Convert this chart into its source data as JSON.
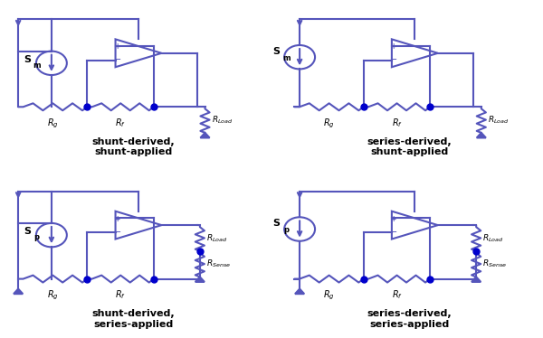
{
  "line_color": "#5555bb",
  "dot_color": "#0000cc",
  "bg_color": "#ffffff",
  "line_width": 1.5,
  "panels": [
    {
      "title": "shunt-derived,\nshunt-applied",
      "source": "Sm",
      "source_type": "shunt",
      "feedback": "shunt"
    },
    {
      "title": "series-derived,\nshunt-applied",
      "source": "Sm",
      "source_type": "series",
      "feedback": "shunt"
    },
    {
      "title": "shunt-derived,\nseries-applied",
      "source": "Sp",
      "source_type": "shunt",
      "feedback": "series"
    },
    {
      "title": "series-derived,\nseries-applied",
      "source": "Sp",
      "source_type": "series",
      "feedback": "series"
    }
  ]
}
